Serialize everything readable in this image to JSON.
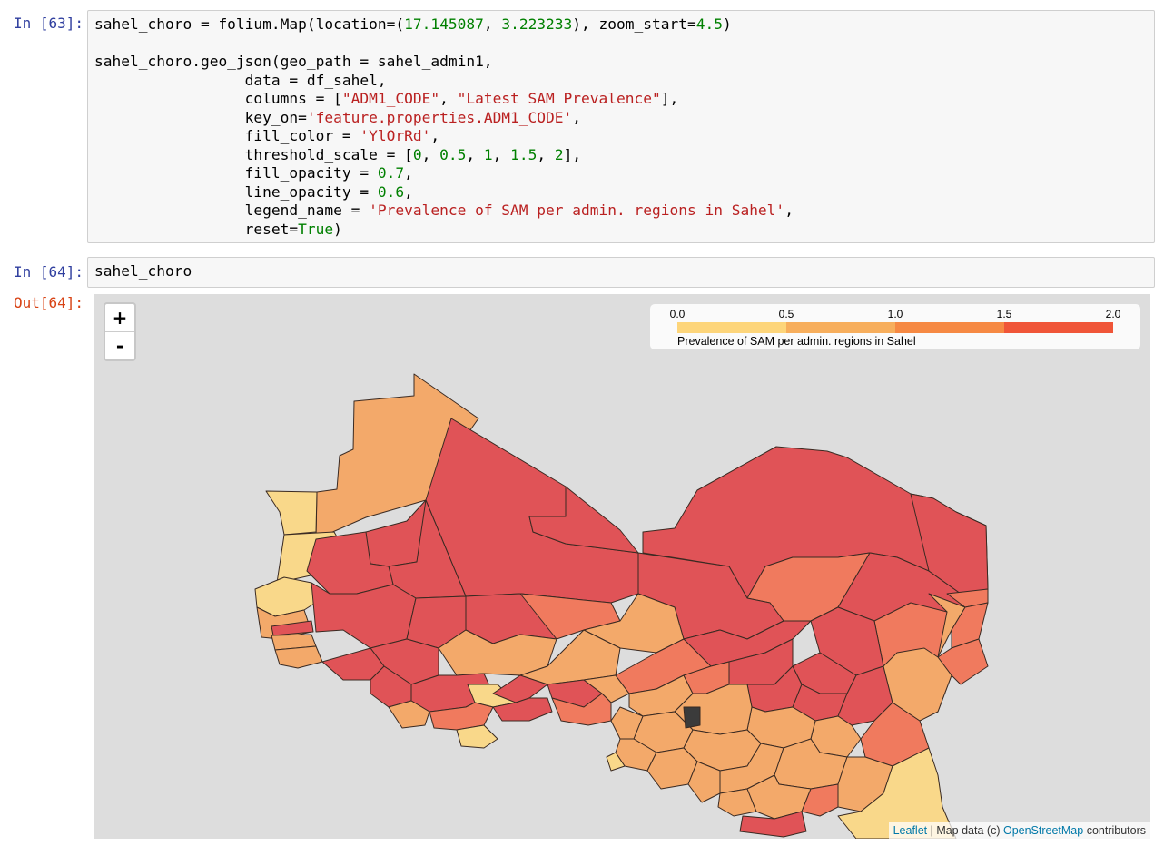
{
  "cells": [
    {
      "prompt": "In [63]:",
      "lines": [
        [
          [
            "sahel_choro = folium.Map(location=(",
            "p"
          ],
          [
            "17.145087",
            "n"
          ],
          [
            ", ",
            "p"
          ],
          [
            "3.223233",
            "n"
          ],
          [
            "), zoom_start=",
            "p"
          ],
          [
            "4.5",
            "n"
          ],
          [
            ")",
            "p"
          ]
        ],
        [],
        [
          [
            "sahel_choro.geo_json(geo_path = sahel_admin1,",
            "p"
          ]
        ],
        [
          [
            "                 data = df_sahel,",
            "p"
          ]
        ],
        [
          [
            "                 columns = [",
            "p"
          ],
          [
            "\"ADM1_CODE\"",
            "s"
          ],
          [
            ", ",
            "p"
          ],
          [
            "\"Latest SAM Prevalence\"",
            "s"
          ],
          [
            "],",
            "p"
          ]
        ],
        [
          [
            "                 key_on=",
            "p"
          ],
          [
            "'feature.properties.ADM1_CODE'",
            "s"
          ],
          [
            ",",
            "p"
          ]
        ],
        [
          [
            "                 fill_color = ",
            "p"
          ],
          [
            "'YlOrRd'",
            "s"
          ],
          [
            ",",
            "p"
          ]
        ],
        [
          [
            "                 threshold_scale = [",
            "p"
          ],
          [
            "0",
            "n"
          ],
          [
            ", ",
            "p"
          ],
          [
            "0.5",
            "n"
          ],
          [
            ", ",
            "p"
          ],
          [
            "1",
            "n"
          ],
          [
            ", ",
            "p"
          ],
          [
            "1.5",
            "n"
          ],
          [
            ", ",
            "p"
          ],
          [
            "2",
            "n"
          ],
          [
            "],",
            "p"
          ]
        ],
        [
          [
            "                 fill_opacity = ",
            "p"
          ],
          [
            "0.7",
            "n"
          ],
          [
            ",",
            "p"
          ]
        ],
        [
          [
            "                 line_opacity = ",
            "p"
          ],
          [
            "0.6",
            "n"
          ],
          [
            ",",
            "p"
          ]
        ],
        [
          [
            "                 legend_name = ",
            "p"
          ],
          [
            "'Prevalence of SAM per admin. regions in Sahel'",
            "s"
          ],
          [
            ",",
            "p"
          ]
        ],
        [
          [
            "                 reset=",
            "p"
          ],
          [
            "True",
            "k"
          ],
          [
            ")",
            "p"
          ]
        ]
      ]
    },
    {
      "prompt": "In [64]:",
      "lines": [
        [
          [
            "sahel_choro",
            "p"
          ]
        ]
      ]
    }
  ],
  "output": {
    "prompt": "Out[64]:",
    "map": {
      "zoom_in_label": "+",
      "zoom_out_label": "-",
      "legend": {
        "ticks": [
          "0.0",
          "0.5",
          "1.0",
          "1.5",
          "2.0"
        ],
        "colors": [
          "#fdd57a",
          "#f7ae5c",
          "#f68943",
          "#f05538"
        ],
        "caption": "Prevalence of SAM per admin. regions in Sahel"
      },
      "attribution": {
        "leaflet": "Leaflet",
        "separator": " | Map data (c) ",
        "osm": "OpenStreetMap",
        "suffix": " contributors"
      },
      "background_color": "#dddddd",
      "region_colors": {
        "very_low": "#f9d88a",
        "low": "#f3a96a",
        "medium": "#f07a5e",
        "high": "#e05357",
        "no_data": "#3b3b3b",
        "border": "#3a2a22"
      }
    }
  }
}
